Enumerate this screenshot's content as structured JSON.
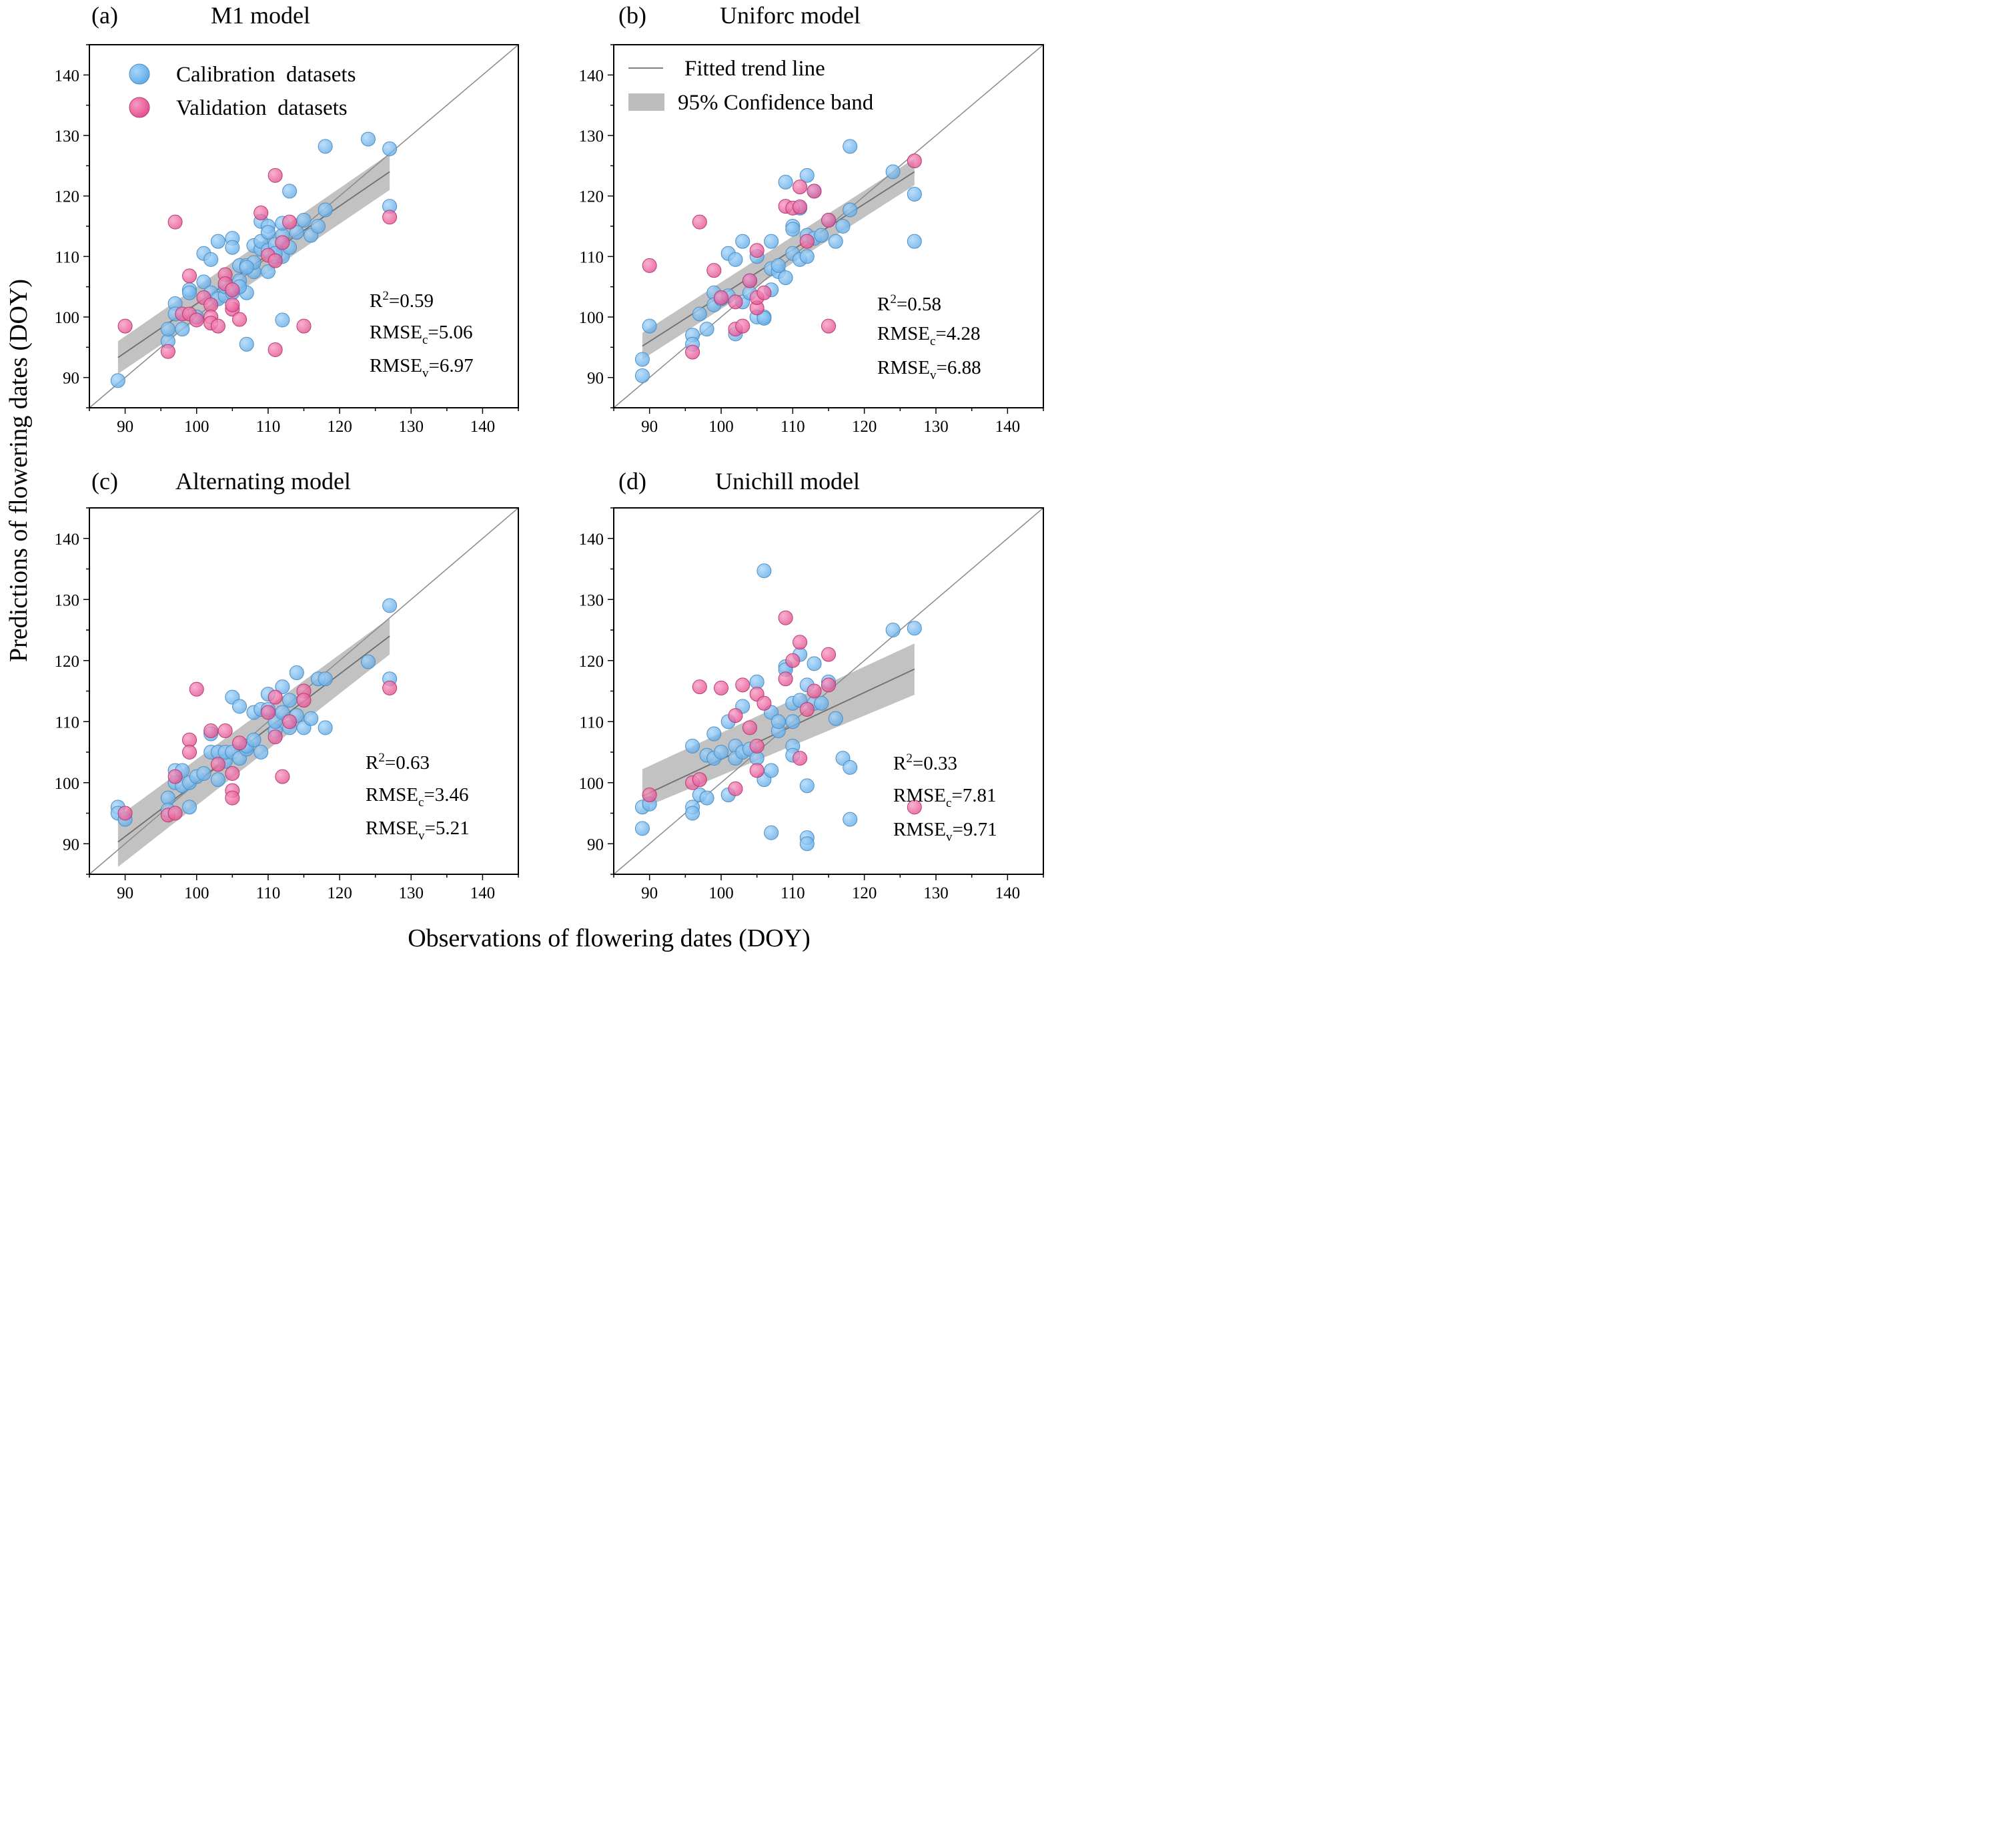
{
  "figure": {
    "xlabel": "Observations of flowering dates (DOY)",
    "ylabel": "Predictions of flowering dates (DOY)"
  },
  "legend": {
    "calibration": "Calibration  datasets",
    "validation": "Validation  datasets",
    "trend": "Fitted trend line",
    "band": "95% Confidence band"
  },
  "colors": {
    "calibration": "#6fb6ef",
    "validation": "#ec5c9c",
    "trend": "#808080",
    "band": "#b7b7b7"
  },
  "chart_data": [
    {
      "type": "scatter",
      "letter": "(a)",
      "title": "M1 model",
      "xlim": [
        85,
        145
      ],
      "ylim": [
        85,
        145
      ],
      "xticks": [
        90,
        100,
        110,
        120,
        130,
        140
      ],
      "yticks": [
        90,
        100,
        110,
        120,
        130,
        140
      ],
      "stats": {
        "r2": "R²=0.59",
        "rmsec": "RMSEc=5.06",
        "rmsev": "RMSEv=6.97"
      },
      "trend": {
        "x": [
          89,
          127
        ],
        "y": [
          93.3,
          124.0
        ],
        "ci_low": [
          90.6,
          121.0
        ],
        "ci_high": [
          96.0,
          127.0
        ]
      },
      "series": [
        {
          "name": "Calibration datasets",
          "x": [
            89,
            96,
            96,
            97,
            97,
            98,
            99,
            99,
            100,
            101,
            101,
            102,
            102,
            103,
            103,
            104,
            104,
            105,
            105,
            105,
            106,
            106,
            107,
            107,
            107,
            108,
            108,
            108,
            109,
            109,
            109,
            110,
            110,
            110,
            110,
            111,
            111,
            112,
            112,
            112,
            113,
            113,
            114,
            115,
            116,
            117,
            118,
            118,
            124,
            127,
            127,
            107,
            112,
            111,
            106
          ],
          "y": [
            89.5,
            96,
            98,
            102.2,
            100.5,
            98,
            104.5,
            104,
            100,
            110.5,
            105.8,
            109.5,
            104,
            112.5,
            103,
            103.5,
            105,
            113,
            111.5,
            104,
            108.5,
            106,
            104,
            108.5,
            95.5,
            107.5,
            109,
            111.8,
            111.2,
            115.8,
            112.5,
            107.5,
            115,
            114,
            111,
            110,
            112,
            99.5,
            110,
            113.5,
            120.8,
            111.5,
            114,
            116,
            113.5,
            115,
            128.2,
            117.7,
            129.4,
            127.8,
            118.3,
            108.2,
            115.5,
            110.5,
            105
          ]
        },
        {
          "name": "Validation datasets",
          "x": [
            90,
            96,
            97,
            98,
            99,
            99,
            100,
            101,
            102,
            102,
            102,
            103,
            104,
            104,
            105,
            105,
            105,
            106,
            109,
            110,
            111,
            111,
            111,
            112,
            113,
            115,
            127
          ],
          "y": [
            98.5,
            94.3,
            115.7,
            100.5,
            106.8,
            100.5,
            99.5,
            103.2,
            102,
            100,
            99,
            98.5,
            107,
            105.5,
            101.3,
            102,
            104.5,
            99.6,
            117.2,
            110.2,
            123.4,
            94.6,
            109.3,
            112.3,
            115.7,
            98.5,
            116.5
          ]
        }
      ]
    },
    {
      "type": "scatter",
      "letter": "(b)",
      "title": "Uniforc model",
      "xlim": [
        85,
        145
      ],
      "ylim": [
        85,
        145
      ],
      "xticks": [
        90,
        100,
        110,
        120,
        130,
        140
      ],
      "yticks": [
        90,
        100,
        110,
        120,
        130,
        140
      ],
      "stats": {
        "r2": "R²=0.58",
        "rmsec": "RMSEc=4.28",
        "rmsev": "RMSEv=6.88"
      },
      "trend": {
        "x": [
          89,
          127
        ],
        "y": [
          95.2,
          124.0
        ],
        "ci_low": [
          93.0,
          121.8
        ],
        "ci_high": [
          97.4,
          126.2
        ]
      },
      "series": [
        {
          "name": "Calibration datasets",
          "x": [
            89,
            89,
            90,
            96,
            96,
            97,
            98,
            99,
            99,
            100,
            101,
            101,
            102,
            102,
            103,
            103,
            104,
            104,
            105,
            105,
            106,
            106,
            107,
            107,
            107,
            108,
            108,
            109,
            109,
            110,
            110,
            110,
            111,
            111,
            112,
            112,
            112,
            113,
            113,
            114,
            115,
            116,
            117,
            118,
            118,
            124,
            127,
            127
          ],
          "y": [
            93,
            90.3,
            98.5,
            97,
            95.5,
            100.5,
            98,
            104,
            102,
            103,
            110.5,
            103.5,
            109.5,
            97.2,
            112.5,
            102.5,
            106,
            104,
            110,
            100,
            100,
            99.8,
            112.5,
            108,
            104.5,
            107.5,
            108.5,
            122.3,
            106.5,
            115,
            114.5,
            110.5,
            109.5,
            118,
            123.4,
            113.5,
            110,
            120.8,
            113,
            113.5,
            116,
            112.5,
            115,
            128.2,
            117.7,
            124,
            120.3,
            112.5
          ]
        },
        {
          "name": "Validation datasets",
          "x": [
            90,
            96,
            97,
            99,
            100,
            102,
            102,
            103,
            104,
            105,
            105,
            105,
            106,
            109,
            110,
            111,
            111,
            112,
            113,
            115,
            115,
            127
          ],
          "y": [
            108.5,
            94.2,
            115.7,
            107.7,
            103.2,
            98,
            102.5,
            98.5,
            106,
            111,
            101.5,
            103.2,
            104,
            118.3,
            118,
            121.5,
            118.2,
            112.5,
            120.8,
            98.5,
            116,
            125.8
          ]
        }
      ]
    },
    {
      "type": "scatter",
      "letter": "(c)",
      "title": "Alternating model",
      "xlim": [
        85,
        145
      ],
      "ylim": [
        85,
        145
      ],
      "xticks": [
        90,
        100,
        110,
        120,
        130,
        140
      ],
      "yticks": [
        90,
        100,
        110,
        120,
        130,
        140
      ],
      "stats": {
        "r2": "R²=0.63",
        "rmsec": "RMSEc=3.46",
        "rmsev": "RMSEv=5.21"
      },
      "trend": {
        "x": [
          89,
          127
        ],
        "y": [
          90.3,
          124.0
        ],
        "ci_low": [
          86.2,
          121.0
        ],
        "ci_high": [
          94.4,
          127.0
        ]
      },
      "series": [
        {
          "name": "Calibration datasets",
          "x": [
            89,
            89,
            90,
            96,
            96,
            97,
            97,
            98,
            98,
            99,
            99,
            100,
            101,
            102,
            102,
            103,
            103,
            104,
            104,
            105,
            105,
            106,
            106,
            107,
            107,
            108,
            108,
            109,
            109,
            110,
            110,
            111,
            111,
            112,
            112,
            113,
            113,
            114,
            114,
            115,
            116,
            117,
            118,
            118,
            124,
            127,
            127
          ],
          "y": [
            96,
            95,
            94,
            97.5,
            95.5,
            102,
            100,
            102,
            99.5,
            96,
            100,
            101,
            101.5,
            108,
            105,
            100.5,
            105,
            103.5,
            105,
            114,
            105,
            112.5,
            104,
            105.5,
            106,
            111.5,
            107,
            112,
            105,
            112,
            114.5,
            108.5,
            110,
            115.7,
            111.5,
            109,
            113.5,
            118,
            111,
            109,
            110.5,
            117,
            117,
            109,
            119.8,
            129,
            117
          ]
        },
        {
          "name": "Validation datasets",
          "x": [
            90,
            96,
            97,
            97,
            99,
            99,
            100,
            102,
            103,
            104,
            105,
            105,
            105,
            106,
            110,
            111,
            111,
            112,
            113,
            115,
            115,
            127
          ],
          "y": [
            95,
            94.7,
            95,
            101,
            107,
            105,
            115.3,
            108.5,
            103,
            108.5,
            101.5,
            98.7,
            97.5,
            106.5,
            111.5,
            114,
            107.5,
            101,
            110,
            115,
            113.5,
            115.5
          ]
        }
      ]
    },
    {
      "type": "scatter",
      "letter": "(d)",
      "title": "Unichill model",
      "xlim": [
        85,
        145
      ],
      "ylim": [
        85,
        145
      ],
      "xticks": [
        90,
        100,
        110,
        120,
        130,
        140
      ],
      "yticks": [
        90,
        100,
        110,
        120,
        130,
        140
      ],
      "stats": {
        "r2": "R²=0.33",
        "rmsec": "RMSEc=7.81",
        "rmsev": "RMSEv=9.71"
      },
      "trend": {
        "x": [
          89,
          127
        ],
        "y": [
          97.8,
          118.6
        ],
        "ci_low": [
          95.8,
          114.4
        ],
        "ci_high": [
          102.2,
          122.8
        ]
      },
      "series": [
        {
          "name": "Calibration datasets",
          "x": [
            89,
            89,
            90,
            96,
            96,
            96,
            97,
            98,
            98,
            99,
            99,
            100,
            101,
            101,
            102,
            102,
            103,
            103,
            104,
            105,
            105,
            106,
            106,
            107,
            107,
            107,
            108,
            108,
            109,
            109,
            110,
            110,
            110,
            110,
            111,
            111,
            112,
            112,
            112,
            112,
            113,
            113,
            114,
            115,
            116,
            117,
            118,
            118,
            124,
            127
          ],
          "y": [
            96,
            92.5,
            96.5,
            96,
            95,
            106,
            98,
            104.5,
            97.5,
            108,
            104,
            105,
            110,
            98,
            106,
            104,
            112.5,
            105,
            105.5,
            116.5,
            104,
            134.7,
            100.5,
            111.5,
            102,
            91.8,
            108.5,
            110,
            119,
            118.5,
            113,
            106,
            110,
            104.5,
            113.5,
            121,
            99.5,
            91,
            90,
            116,
            119.5,
            113,
            113,
            116.5,
            110.5,
            104,
            102.5,
            94,
            125,
            125.3
          ]
        },
        {
          "name": "Validation datasets",
          "x": [
            90,
            96,
            97,
            97,
            100,
            102,
            102,
            103,
            104,
            105,
            105,
            105,
            106,
            109,
            109,
            110,
            111,
            111,
            112,
            113,
            115,
            115,
            127
          ],
          "y": [
            98,
            100,
            100.5,
            115.7,
            115.5,
            111,
            99,
            116,
            109,
            114.5,
            102,
            106,
            113,
            127,
            117,
            120,
            123,
            104,
            112,
            115,
            121,
            116,
            96
          ]
        }
      ]
    }
  ]
}
